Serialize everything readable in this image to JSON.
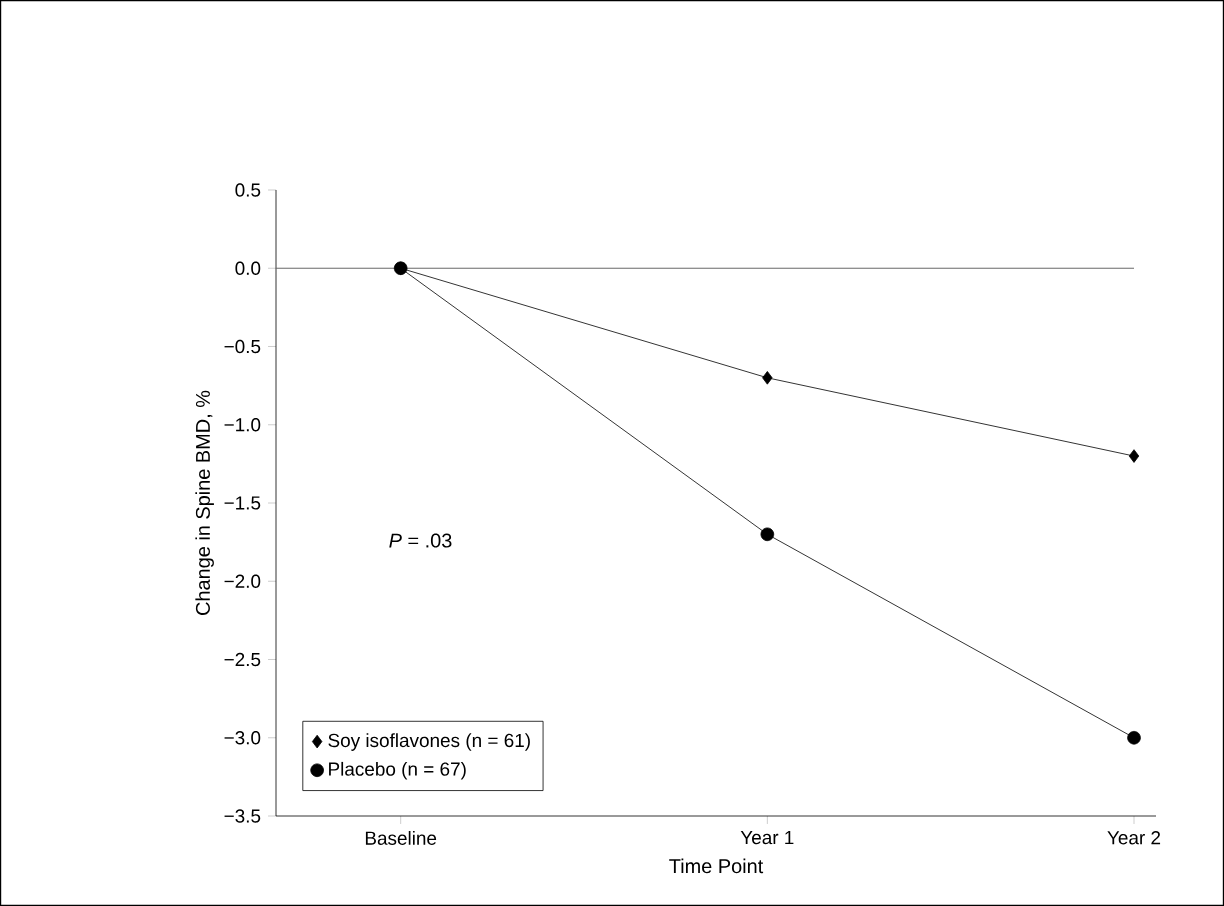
{
  "chart_data": {
    "type": "line",
    "xlabel": "Time Point",
    "ylabel": "Change in Spine BMD, %",
    "categories": [
      "Baseline",
      "Year 1",
      "Year 2"
    ],
    "series": [
      {
        "name": "Soy isoflavones (n = 61)",
        "color": "#000000",
        "marker": "diamond",
        "values": [
          0,
          -0.7,
          -1.2
        ]
      },
      {
        "name": "Placebo (n = 67)",
        "color": "#000000",
        "marker": "circle",
        "values": [
          0,
          -1.7,
          -3.0
        ]
      }
    ],
    "ylim": [
      -3.5,
      0.5
    ],
    "yticks": [
      {
        "value": -3.5,
        "label": "−3.5"
      },
      {
        "value": -3.0,
        "label": "−3.0"
      },
      {
        "value": -2.5,
        "label": "−2.5"
      },
      {
        "value": -2.0,
        "label": "−2.0"
      },
      {
        "value": -1.5,
        "label": "−1.5"
      },
      {
        "value": -1.0,
        "label": "−1.0"
      },
      {
        "value": -0.5,
        "label": "−0.5"
      },
      {
        "value": 0,
        "label": "0.0"
      },
      {
        "value": 0.5,
        "label": "0.5"
      }
    ],
    "ref_lines": [
      {
        "axis": "y",
        "value": 0,
        "color": "#666666"
      }
    ],
    "annotations": [
      "*P* = .03"
    ],
    "legend": "bottom left",
    "grid": false,
    "line_style": "solid"
  }
}
